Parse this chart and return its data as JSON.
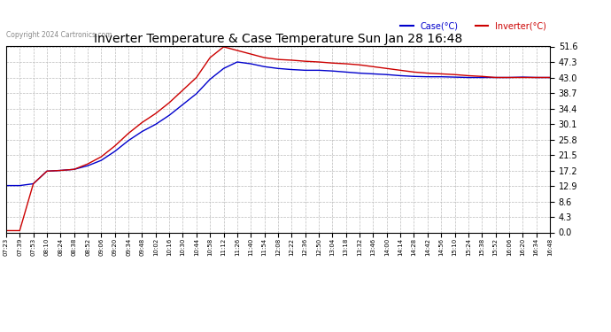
{
  "title": "Inverter Temperature & Case Temperature Sun Jan 28 16:48",
  "copyright": "Copyright 2024 Cartronics.com",
  "legend_case": "Case(°C)",
  "legend_inverter": "Inverter(°C)",
  "case_color": "#0000cc",
  "inverter_color": "#cc0000",
  "ymin": 0.0,
  "ymax": 51.6,
  "yticks": [
    0.0,
    4.3,
    8.6,
    12.9,
    17.2,
    21.5,
    25.8,
    30.1,
    34.4,
    38.7,
    43.0,
    47.3,
    51.6
  ],
  "xtick_labels": [
    "07:23",
    "07:39",
    "07:53",
    "08:10",
    "08:24",
    "08:38",
    "08:52",
    "09:06",
    "09:20",
    "09:34",
    "09:48",
    "10:02",
    "10:16",
    "10:30",
    "10:44",
    "10:58",
    "11:12",
    "11:26",
    "11:40",
    "11:54",
    "12:08",
    "12:22",
    "12:36",
    "12:50",
    "13:04",
    "13:18",
    "13:32",
    "13:46",
    "14:00",
    "14:14",
    "14:28",
    "14:42",
    "14:56",
    "15:10",
    "15:24",
    "15:38",
    "15:52",
    "16:06",
    "16:20",
    "16:34",
    "16:48"
  ],
  "background_color": "#ffffff",
  "grid_color": "#bbbbbb",
  "case_data": [
    [
      0,
      13.0
    ],
    [
      1,
      13.0
    ],
    [
      2,
      13.5
    ],
    [
      3,
      17.0
    ],
    [
      4,
      17.2
    ],
    [
      5,
      17.5
    ],
    [
      6,
      18.5
    ],
    [
      7,
      20.0
    ],
    [
      8,
      22.5
    ],
    [
      9,
      25.5
    ],
    [
      10,
      28.0
    ],
    [
      11,
      30.0
    ],
    [
      12,
      32.5
    ],
    [
      13,
      35.5
    ],
    [
      14,
      38.5
    ],
    [
      15,
      42.5
    ],
    [
      16,
      45.5
    ],
    [
      17,
      47.3
    ],
    [
      18,
      46.8
    ],
    [
      19,
      46.0
    ],
    [
      20,
      45.5
    ],
    [
      21,
      45.2
    ],
    [
      22,
      45.0
    ],
    [
      23,
      45.0
    ],
    [
      24,
      44.8
    ],
    [
      25,
      44.5
    ],
    [
      26,
      44.2
    ],
    [
      27,
      44.0
    ],
    [
      28,
      43.8
    ],
    [
      29,
      43.5
    ],
    [
      30,
      43.3
    ],
    [
      31,
      43.2
    ],
    [
      32,
      43.2
    ],
    [
      33,
      43.1
    ],
    [
      34,
      43.0
    ],
    [
      35,
      43.0
    ],
    [
      36,
      43.0
    ],
    [
      37,
      43.0
    ],
    [
      38,
      43.1
    ],
    [
      39,
      43.0
    ],
    [
      40,
      43.0
    ]
  ],
  "inverter_data": [
    [
      0,
      0.5
    ],
    [
      1,
      0.5
    ],
    [
      2,
      13.5
    ],
    [
      3,
      17.0
    ],
    [
      4,
      17.2
    ],
    [
      5,
      17.5
    ],
    [
      6,
      19.0
    ],
    [
      7,
      21.0
    ],
    [
      8,
      24.0
    ],
    [
      9,
      27.5
    ],
    [
      10,
      30.5
    ],
    [
      11,
      33.0
    ],
    [
      12,
      36.0
    ],
    [
      13,
      39.5
    ],
    [
      14,
      43.0
    ],
    [
      15,
      48.5
    ],
    [
      16,
      51.5
    ],
    [
      17,
      50.5
    ],
    [
      18,
      49.5
    ],
    [
      19,
      48.5
    ],
    [
      20,
      48.0
    ],
    [
      21,
      47.8
    ],
    [
      22,
      47.5
    ],
    [
      23,
      47.3
    ],
    [
      24,
      47.0
    ],
    [
      25,
      46.8
    ],
    [
      26,
      46.5
    ],
    [
      27,
      46.0
    ],
    [
      28,
      45.5
    ],
    [
      29,
      45.0
    ],
    [
      30,
      44.5
    ],
    [
      31,
      44.2
    ],
    [
      32,
      44.0
    ],
    [
      33,
      43.8
    ],
    [
      34,
      43.5
    ],
    [
      35,
      43.3
    ],
    [
      36,
      43.0
    ],
    [
      37,
      43.0
    ],
    [
      38,
      43.0
    ],
    [
      39,
      43.0
    ],
    [
      40,
      43.0
    ]
  ]
}
